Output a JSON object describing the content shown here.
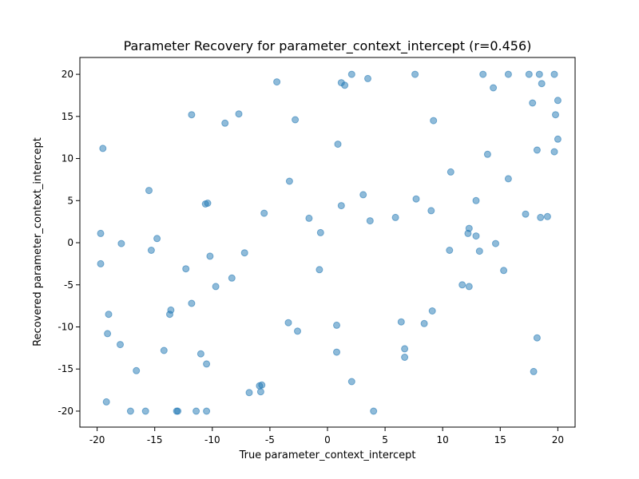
{
  "chart_data": {
    "type": "scatter",
    "title": "Parameter Recovery for parameter_context_intercept (r=0.456)",
    "xlabel": "True parameter_context_intercept",
    "ylabel": "Recovered parameter_context_intercept",
    "xlim": [
      -21.5,
      21.5
    ],
    "ylim": [
      -21.9,
      22.0
    ],
    "xticks": [
      -20,
      -15,
      -10,
      -5,
      0,
      5,
      10,
      15,
      20
    ],
    "yticks": [
      -20,
      -15,
      -10,
      -5,
      0,
      5,
      10,
      15,
      20
    ],
    "grid": false,
    "legend": "none",
    "marker_color": "#1f77b4",
    "points": [
      {
        "x": -19.5,
        "y": 11.2
      },
      {
        "x": -19.7,
        "y": 1.1
      },
      {
        "x": -19.7,
        "y": -2.5
      },
      {
        "x": -19.0,
        "y": -8.5
      },
      {
        "x": -19.1,
        "y": -10.8
      },
      {
        "x": -19.2,
        "y": -18.9
      },
      {
        "x": -17.9,
        "y": -0.1
      },
      {
        "x": -18.0,
        "y": -12.1
      },
      {
        "x": -17.1,
        "y": -20.0
      },
      {
        "x": -16.6,
        "y": -15.2
      },
      {
        "x": -15.8,
        "y": -20.0
      },
      {
        "x": -15.5,
        "y": 6.2
      },
      {
        "x": -15.3,
        "y": -0.9
      },
      {
        "x": -14.8,
        "y": 0.5
      },
      {
        "x": -14.2,
        "y": -12.8
      },
      {
        "x": -13.6,
        "y": -8.0
      },
      {
        "x": -13.7,
        "y": -8.5
      },
      {
        "x": -13.1,
        "y": -20.0
      },
      {
        "x": -13.0,
        "y": -20.0
      },
      {
        "x": -12.3,
        "y": -3.1
      },
      {
        "x": -11.8,
        "y": 15.2
      },
      {
        "x": -11.8,
        "y": -7.2
      },
      {
        "x": -11.4,
        "y": -20.0
      },
      {
        "x": -11.0,
        "y": -13.2
      },
      {
        "x": -10.6,
        "y": 4.6
      },
      {
        "x": -10.4,
        "y": 4.7
      },
      {
        "x": -10.5,
        "y": -14.4
      },
      {
        "x": -10.5,
        "y": -20.0
      },
      {
        "x": -10.2,
        "y": -1.6
      },
      {
        "x": -9.7,
        "y": -5.2
      },
      {
        "x": -8.9,
        "y": 14.2
      },
      {
        "x": -8.3,
        "y": -4.2
      },
      {
        "x": -7.7,
        "y": 15.3
      },
      {
        "x": -7.2,
        "y": -1.2
      },
      {
        "x": -6.8,
        "y": -17.8
      },
      {
        "x": -5.9,
        "y": -17.0
      },
      {
        "x": -5.7,
        "y": -16.9
      },
      {
        "x": -5.8,
        "y": -17.7
      },
      {
        "x": -5.5,
        "y": 3.5
      },
      {
        "x": -4.4,
        "y": 19.1
      },
      {
        "x": -3.4,
        "y": -9.5
      },
      {
        "x": -3.3,
        "y": 7.3
      },
      {
        "x": -2.8,
        "y": 14.6
      },
      {
        "x": -2.6,
        "y": -10.5
      },
      {
        "x": -1.6,
        "y": 2.9
      },
      {
        "x": -0.6,
        "y": 1.2
      },
      {
        "x": -0.7,
        "y": -3.2
      },
      {
        "x": 0.9,
        "y": 11.7
      },
      {
        "x": 0.8,
        "y": -9.8
      },
      {
        "x": 0.8,
        "y": -13.0
      },
      {
        "x": 1.2,
        "y": 19.0
      },
      {
        "x": 1.5,
        "y": 18.7
      },
      {
        "x": 1.2,
        "y": 4.4
      },
      {
        "x": 2.1,
        "y": 20.0
      },
      {
        "x": 2.1,
        "y": -16.5
      },
      {
        "x": 3.1,
        "y": 5.7
      },
      {
        "x": 3.5,
        "y": 19.5
      },
      {
        "x": 3.7,
        "y": 2.6
      },
      {
        "x": 4.0,
        "y": -20.0
      },
      {
        "x": 5.9,
        "y": 3.0
      },
      {
        "x": 6.4,
        "y": -9.4
      },
      {
        "x": 6.7,
        "y": -12.6
      },
      {
        "x": 6.7,
        "y": -13.6
      },
      {
        "x": 7.6,
        "y": 20.0
      },
      {
        "x": 7.7,
        "y": 5.2
      },
      {
        "x": 8.4,
        "y": -9.6
      },
      {
        "x": 9.0,
        "y": 3.8
      },
      {
        "x": 9.2,
        "y": 14.5
      },
      {
        "x": 9.1,
        "y": -8.1
      },
      {
        "x": 10.6,
        "y": -0.9
      },
      {
        "x": 10.7,
        "y": 8.4
      },
      {
        "x": 11.7,
        "y": -5.0
      },
      {
        "x": 12.2,
        "y": 1.1
      },
      {
        "x": 12.3,
        "y": 1.7
      },
      {
        "x": 12.3,
        "y": -5.2
      },
      {
        "x": 12.9,
        "y": 5.0
      },
      {
        "x": 12.9,
        "y": 0.8
      },
      {
        "x": 13.2,
        "y": -1.0
      },
      {
        "x": 13.5,
        "y": 20.0
      },
      {
        "x": 13.9,
        "y": 10.5
      },
      {
        "x": 14.4,
        "y": 18.4
      },
      {
        "x": 14.6,
        "y": -0.1
      },
      {
        "x": 15.3,
        "y": -3.3
      },
      {
        "x": 15.7,
        "y": 20.0
      },
      {
        "x": 15.7,
        "y": 7.6
      },
      {
        "x": 17.2,
        "y": 3.4
      },
      {
        "x": 17.5,
        "y": 20.0
      },
      {
        "x": 17.8,
        "y": 16.6
      },
      {
        "x": 17.9,
        "y": -15.3
      },
      {
        "x": 18.2,
        "y": 11.0
      },
      {
        "x": 18.2,
        "y": -11.3
      },
      {
        "x": 18.4,
        "y": 20.0
      },
      {
        "x": 18.6,
        "y": 18.9
      },
      {
        "x": 18.5,
        "y": 3.0
      },
      {
        "x": 19.1,
        "y": 3.1
      },
      {
        "x": 19.7,
        "y": 20.0
      },
      {
        "x": 19.8,
        "y": 15.2
      },
      {
        "x": 19.7,
        "y": 10.8
      },
      {
        "x": 20.0,
        "y": 16.9
      },
      {
        "x": 20.0,
        "y": 12.3
      }
    ]
  }
}
